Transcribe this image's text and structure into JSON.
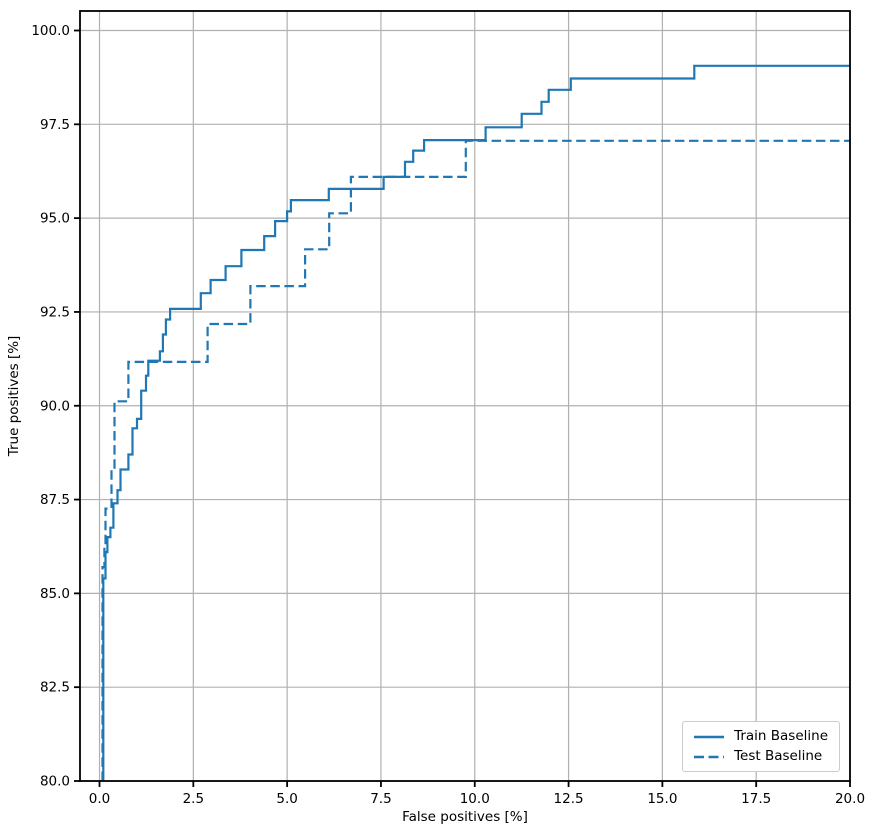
{
  "figure": {
    "background": "#ffffff",
    "accent_color": "#1f77b4",
    "grid_color": "#b0b0b0",
    "spine_color": "#000000"
  },
  "chart_data": {
    "type": "line",
    "subtype": "step-roc-curve",
    "title": "",
    "xlabel": "False positives [%]",
    "ylabel": "True positives [%]",
    "xlim": [
      -0.52,
      20.0
    ],
    "ylim": [
      80.0,
      100.52
    ],
    "grid": true,
    "x_ticks": [
      0.0,
      2.5,
      5.0,
      7.5,
      10.0,
      12.5,
      15.0,
      17.5,
      20.0
    ],
    "x_tick_labels": [
      "0.0",
      "2.5",
      "5.0",
      "7.5",
      "10.0",
      "12.5",
      "15.0",
      "17.5",
      "20.0"
    ],
    "y_ticks": [
      80.0,
      82.5,
      85.0,
      87.5,
      90.0,
      92.5,
      95.0,
      97.5,
      100.0
    ],
    "y_tick_labels": [
      "80.0",
      "82.5",
      "85.0",
      "87.5",
      "90.0",
      "92.5",
      "95.0",
      "97.5",
      "100.0"
    ],
    "legend": {
      "position": "lower right",
      "entries": [
        {
          "label": "Train Baseline",
          "style": "solid"
        },
        {
          "label": "Test Baseline",
          "style": "dashed"
        }
      ]
    },
    "series": [
      {
        "name": "Train Baseline",
        "style": "solid",
        "color": "#1f77b4",
        "points": [
          [
            0.1,
            80.0
          ],
          [
            0.1,
            85.4
          ],
          [
            0.16,
            85.4
          ],
          [
            0.16,
            86.1
          ],
          [
            0.21,
            86.1
          ],
          [
            0.21,
            86.5
          ],
          [
            0.29,
            86.5
          ],
          [
            0.29,
            86.75
          ],
          [
            0.37,
            86.75
          ],
          [
            0.37,
            87.4
          ],
          [
            0.48,
            87.4
          ],
          [
            0.48,
            87.75
          ],
          [
            0.56,
            87.75
          ],
          [
            0.56,
            88.3
          ],
          [
            0.77,
            88.3
          ],
          [
            0.77,
            88.7
          ],
          [
            0.88,
            88.7
          ],
          [
            0.88,
            89.4
          ],
          [
            1.0,
            89.4
          ],
          [
            1.0,
            89.65
          ],
          [
            1.11,
            89.65
          ],
          [
            1.11,
            90.4
          ],
          [
            1.24,
            90.4
          ],
          [
            1.24,
            90.8
          ],
          [
            1.3,
            90.8
          ],
          [
            1.3,
            91.2
          ],
          [
            1.61,
            91.2
          ],
          [
            1.61,
            91.45
          ],
          [
            1.69,
            91.45
          ],
          [
            1.69,
            91.9
          ],
          [
            1.77,
            91.9
          ],
          [
            1.77,
            92.3
          ],
          [
            1.88,
            92.3
          ],
          [
            1.88,
            92.58
          ],
          [
            2.7,
            92.58
          ],
          [
            2.7,
            93.0
          ],
          [
            2.96,
            93.0
          ],
          [
            2.96,
            93.35
          ],
          [
            3.36,
            93.35
          ],
          [
            3.36,
            93.72
          ],
          [
            3.78,
            93.72
          ],
          [
            3.78,
            94.15
          ],
          [
            4.39,
            94.15
          ],
          [
            4.39,
            94.52
          ],
          [
            4.68,
            94.52
          ],
          [
            4.68,
            94.92
          ],
          [
            5.0,
            94.92
          ],
          [
            5.0,
            95.18
          ],
          [
            5.1,
            95.18
          ],
          [
            5.1,
            95.48
          ],
          [
            6.11,
            95.48
          ],
          [
            6.11,
            95.78
          ],
          [
            7.57,
            95.78
          ],
          [
            7.57,
            96.1
          ],
          [
            8.14,
            96.1
          ],
          [
            8.14,
            96.5
          ],
          [
            8.36,
            96.5
          ],
          [
            8.36,
            96.8
          ],
          [
            8.65,
            96.8
          ],
          [
            8.65,
            97.08
          ],
          [
            10.29,
            97.08
          ],
          [
            10.29,
            97.42
          ],
          [
            11.25,
            97.42
          ],
          [
            11.25,
            97.78
          ],
          [
            11.78,
            97.78
          ],
          [
            11.78,
            98.1
          ],
          [
            11.97,
            98.1
          ],
          [
            11.97,
            98.42
          ],
          [
            12.56,
            98.42
          ],
          [
            12.56,
            98.72
          ],
          [
            15.85,
            98.72
          ],
          [
            15.85,
            99.06
          ],
          [
            20.0,
            99.06
          ]
        ]
      },
      {
        "name": "Test Baseline",
        "style": "dashed",
        "color": "#1f77b4",
        "points": [
          [
            0.08,
            80.0
          ],
          [
            0.08,
            85.7
          ],
          [
            0.13,
            85.7
          ],
          [
            0.13,
            86.3
          ],
          [
            0.16,
            86.3
          ],
          [
            0.16,
            87.26
          ],
          [
            0.32,
            87.26
          ],
          [
            0.32,
            88.3
          ],
          [
            0.4,
            88.3
          ],
          [
            0.4,
            90.12
          ],
          [
            0.77,
            90.12
          ],
          [
            0.77,
            91.17
          ],
          [
            2.88,
            91.17
          ],
          [
            2.88,
            92.18
          ],
          [
            4.02,
            92.18
          ],
          [
            4.02,
            93.19
          ],
          [
            5.48,
            93.19
          ],
          [
            5.48,
            94.17
          ],
          [
            6.12,
            94.17
          ],
          [
            6.12,
            95.13
          ],
          [
            6.7,
            95.13
          ],
          [
            6.7,
            96.1
          ],
          [
            9.76,
            96.1
          ],
          [
            9.76,
            97.06
          ],
          [
            20.0,
            97.06
          ]
        ]
      }
    ]
  }
}
